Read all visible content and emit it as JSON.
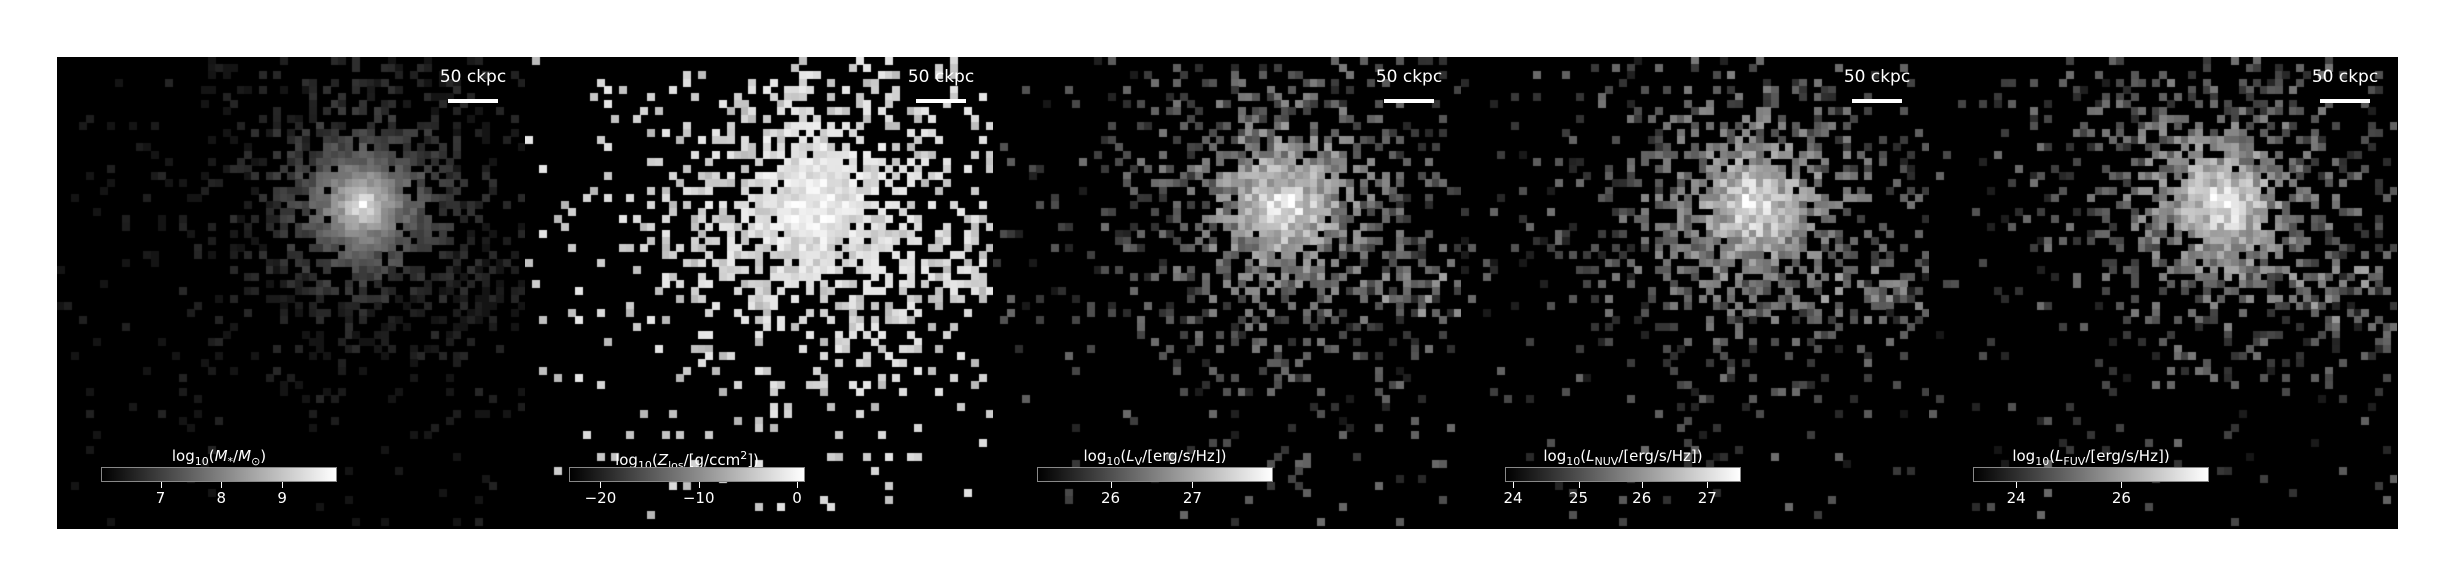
{
  "scalebar_label": "50 ckpc",
  "panels": [
    {
      "label_html": "log<sub>10</sub>(<i>M</i><sub>*</sub>/<i>M</i><sub>⊙</sub>)",
      "ticks": [
        {
          "label": "7",
          "pos": 0.25
        },
        {
          "label": "8",
          "pos": 0.51
        },
        {
          "label": "9",
          "pos": 0.77
        }
      ],
      "style": "mass"
    },
    {
      "label_html": "log<sub>10</sub>(<i>Z</i><sub>los</sub>/[g/ccm<sup>2</sup>])",
      "ticks": [
        {
          "label": "−20",
          "pos": 0.13
        },
        {
          "label": "−10",
          "pos": 0.55
        },
        {
          "label": "0",
          "pos": 0.97
        }
      ],
      "style": "metal"
    },
    {
      "label_html": "log<sub>10</sub>(<i>L</i><sub>V</sub>/[erg/s/Hz])",
      "ticks": [
        {
          "label": "26",
          "pos": 0.31
        },
        {
          "label": "27",
          "pos": 0.66
        }
      ],
      "style": "lum"
    },
    {
      "label_html": "log<sub>10</sub>(<i>L</i><sub>NUV</sub>/[erg/s/Hz])",
      "ticks": [
        {
          "label": "24",
          "pos": 0.03
        },
        {
          "label": "25",
          "pos": 0.31
        },
        {
          "label": "26",
          "pos": 0.58
        },
        {
          "label": "27",
          "pos": 0.86
        }
      ],
      "style": "lum"
    },
    {
      "label_html": "log<sub>10</sub>(<i>L</i><sub>FUV</sub>/[erg/s/Hz])",
      "ticks": [
        {
          "label": "24",
          "pos": 0.18
        },
        {
          "label": "26",
          "pos": 0.63
        }
      ],
      "style": "lum"
    }
  ]
}
